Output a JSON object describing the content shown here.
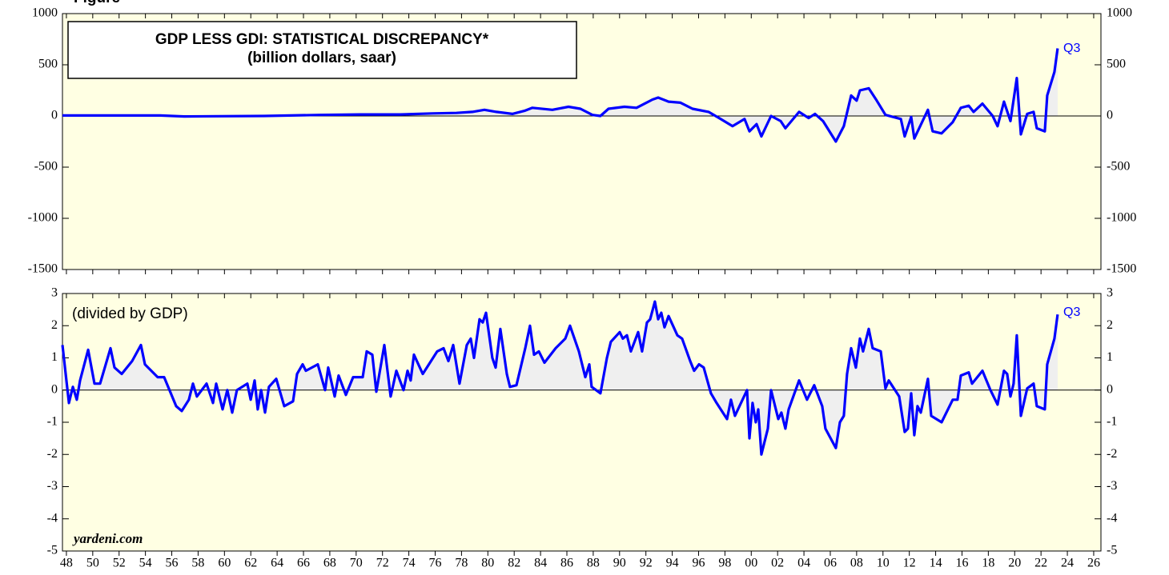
{
  "figure_label": "Figure",
  "chart_data": [
    {
      "type": "line",
      "title": "GDP LESS GDI: STATISTICAL DISCREPANCY*",
      "subtitle": "(billion dollars, saar)",
      "annotation": "Q3",
      "xlim": [
        1947.7,
        2026.55
      ],
      "ylim": [
        -1500,
        1000
      ],
      "yticks": [
        -1500,
        -1000,
        -500,
        0,
        500,
        1000
      ],
      "series": [
        {
          "name": "GDP less GDI",
          "color": "#0000ff",
          "x": [
            1947.7,
            1955.12,
            1956.94,
            1963.02,
            1967.27,
            1970.31,
            1973.35,
            1975.79,
            1977.61,
            1978.82,
            1979.74,
            1980.65,
            1981.86,
            1982.78,
            1983.38,
            1984.9,
            1986.12,
            1987.03,
            1987.94,
            1988.55,
            1989.16,
            1990.37,
            1991.29,
            1992.5,
            1992.93,
            1993.72,
            1994.63,
            1995.54,
            1996.76,
            1997.67,
            1998.58,
            1999.49,
            1999.86,
            2000.4,
            2000.77,
            2001.5,
            2002.23,
            2002.59,
            2003.63,
            2004.36,
            2004.84,
            2005.45,
            2006.42,
            2007.03,
            2007.58,
            2008.0,
            2008.25,
            2008.92,
            2009.53,
            2010.19,
            2011.36,
            2011.65,
            2012.14,
            2012.38,
            2013.41,
            2013.77,
            2014.45,
            2015.3,
            2015.91,
            2016.51,
            2016.88,
            2017.55,
            2018.33,
            2018.7,
            2019.19,
            2019.68,
            2020.16,
            2020.47,
            2020.95,
            2021.44,
            2021.68,
            2022.29,
            2022.47,
            2023.02,
            2023.26
          ],
          "values": [
            5,
            5,
            -5,
            0,
            10,
            15,
            15,
            25,
            30,
            40,
            60,
            40,
            20,
            50,
            80,
            60,
            90,
            70,
            10,
            0,
            70,
            90,
            80,
            160,
            180,
            140,
            130,
            70,
            40,
            -30,
            -100,
            -30,
            -150,
            -80,
            -200,
            0,
            -50,
            -120,
            40,
            -20,
            20,
            -50,
            -250,
            -100,
            200,
            150,
            250,
            270,
            150,
            10,
            -30,
            -200,
            -10,
            -220,
            60,
            -150,
            -170,
            -60,
            80,
            100,
            40,
            120,
            0,
            -100,
            140,
            -50,
            370,
            -180,
            20,
            40,
            -120,
            -150,
            200,
            430,
            660
          ]
        }
      ]
    },
    {
      "type": "line",
      "annotation": "(divided by GDP)",
      "label": "Q3",
      "source": "yardeni.com",
      "xlim": [
        1947.7,
        2026.55
      ],
      "ylim": [
        -5,
        3
      ],
      "yticks": [
        -5,
        -4,
        -3,
        -2,
        -1,
        0,
        1,
        2,
        3
      ],
      "xticks": [
        {
          "value": 1948,
          "label": "48"
        },
        {
          "value": 1950,
          "label": "50"
        },
        {
          "value": 1952,
          "label": "52"
        },
        {
          "value": 1954,
          "label": "54"
        },
        {
          "value": 1956,
          "label": "56"
        },
        {
          "value": 1958,
          "label": "58"
        },
        {
          "value": 1960,
          "label": "60"
        },
        {
          "value": 1962,
          "label": "62"
        },
        {
          "value": 1964,
          "label": "64"
        },
        {
          "value": 1966,
          "label": "66"
        },
        {
          "value": 1968,
          "label": "68"
        },
        {
          "value": 1970,
          "label": "70"
        },
        {
          "value": 1972,
          "label": "72"
        },
        {
          "value": 1974,
          "label": "74"
        },
        {
          "value": 1976,
          "label": "76"
        },
        {
          "value": 1978,
          "label": "78"
        },
        {
          "value": 1980,
          "label": "80"
        },
        {
          "value": 1982,
          "label": "82"
        },
        {
          "value": 1984,
          "label": "84"
        },
        {
          "value": 1986,
          "label": "86"
        },
        {
          "value": 1988,
          "label": "88"
        },
        {
          "value": 1990,
          "label": "90"
        },
        {
          "value": 1992,
          "label": "92"
        },
        {
          "value": 1994,
          "label": "94"
        },
        {
          "value": 1996,
          "label": "96"
        },
        {
          "value": 1998,
          "label": "98"
        },
        {
          "value": 2000,
          "label": "00"
        },
        {
          "value": 2002,
          "label": "02"
        },
        {
          "value": 2004,
          "label": "04"
        },
        {
          "value": 2006,
          "label": "06"
        },
        {
          "value": 2008,
          "label": "08"
        },
        {
          "value": 2010,
          "label": "10"
        },
        {
          "value": 2012,
          "label": "12"
        },
        {
          "value": 2014,
          "label": "14"
        },
        {
          "value": 2016,
          "label": "16"
        },
        {
          "value": 2018,
          "label": "18"
        },
        {
          "value": 2020,
          "label": "20"
        },
        {
          "value": 2022,
          "label": "22"
        },
        {
          "value": 2024,
          "label": "24"
        },
        {
          "value": 2026,
          "label": "26"
        }
      ],
      "series": [
        {
          "name": "divided by GDP",
          "color": "#0000ff",
          "x": [
            1947.7,
            1948.19,
            1948.49,
            1948.79,
            1949.04,
            1949.65,
            1950.13,
            1950.56,
            1951.35,
            1951.65,
            1952.2,
            1952.99,
            1953.66,
            1953.96,
            1954.93,
            1955.42,
            1956.33,
            1956.76,
            1957.3,
            1957.61,
            1957.91,
            1958.64,
            1959.13,
            1959.37,
            1959.86,
            1960.22,
            1960.59,
            1960.95,
            1961.74,
            1961.99,
            1962.29,
            1962.53,
            1962.78,
            1963.08,
            1963.38,
            1963.93,
            1964.54,
            1965.21,
            1965.51,
            1965.94,
            1966.18,
            1967.09,
            1967.64,
            1967.88,
            1968.37,
            1968.67,
            1969.22,
            1969.77,
            1970.5,
            1970.8,
            1971.23,
            1971.53,
            1972.14,
            1972.62,
            1973.05,
            1973.6,
            1973.9,
            1974.14,
            1974.39,
            1975.06,
            1976.15,
            1976.64,
            1977.0,
            1977.37,
            1977.85,
            1978.4,
            1978.7,
            1978.95,
            1979.37,
            1979.61,
            1979.86,
            1980.34,
            1980.59,
            1980.95,
            1981.44,
            1981.68,
            1982.17,
            1982.84,
            1983.2,
            1983.51,
            1983.87,
            1984.3,
            1985.15,
            1985.88,
            1986.24,
            1986.91,
            1987.4,
            1987.7,
            1987.88,
            1988.55,
            1989.04,
            1989.34,
            1990.01,
            1990.25,
            1990.56,
            1990.86,
            1991.41,
            1991.71,
            1992.08,
            1992.32,
            1992.68,
            1992.93,
            1993.17,
            1993.41,
            1993.72,
            1994.39,
            1994.75,
            1995.36,
            1995.66,
            1996.03,
            1996.39,
            1996.94,
            1997.37,
            1998.16,
            1998.46,
            1998.76,
            1999.68,
            1999.86,
            2000.1,
            2000.34,
            2000.53,
            2000.77,
            2001.26,
            2001.5,
            2002.05,
            2002.29,
            2002.59,
            2002.84,
            2003.63,
            2004.23,
            2004.78,
            2005.39,
            2005.63,
            2006.42,
            2006.73,
            2007.03,
            2007.27,
            2007.58,
            2007.94,
            2008.25,
            2008.49,
            2008.92,
            2009.22,
            2009.83,
            2010.19,
            2010.44,
            2011.23,
            2011.65,
            2011.89,
            2012.14,
            2012.38,
            2012.62,
            2012.87,
            2013.41,
            2013.66,
            2014.45,
            2015.3,
            2015.66,
            2015.91,
            2016.51,
            2016.76,
            2017.55,
            2018.16,
            2018.7,
            2019.19,
            2019.43,
            2019.68,
            2019.92,
            2020.16,
            2020.47,
            2020.95,
            2021.44,
            2021.68,
            2022.29,
            2022.47,
            2023.02,
            2023.26
          ],
          "values": [
            1.4,
            -0.4,
            0.1,
            -0.3,
            0.3,
            1.25,
            0.2,
            0.2,
            1.3,
            0.7,
            0.5,
            0.9,
            1.4,
            0.8,
            0.4,
            0.4,
            -0.5,
            -0.65,
            -0.3,
            0.2,
            -0.2,
            0.2,
            -0.4,
            0.2,
            -0.6,
            0.0,
            -0.7,
            0.0,
            0.2,
            -0.3,
            0.3,
            -0.6,
            0.0,
            -0.7,
            0.1,
            0.35,
            -0.5,
            -0.35,
            0.5,
            0.8,
            0.6,
            0.8,
            0.0,
            0.7,
            -0.2,
            0.45,
            -0.15,
            0.4,
            0.4,
            1.2,
            1.1,
            -0.05,
            1.4,
            -0.2,
            0.6,
            0.0,
            0.6,
            0.3,
            1.1,
            0.5,
            1.2,
            1.3,
            0.9,
            1.4,
            0.2,
            1.4,
            1.6,
            1.0,
            2.2,
            2.1,
            2.4,
            1.0,
            0.7,
            1.9,
            0.5,
            0.1,
            0.15,
            1.3,
            2.0,
            1.1,
            1.2,
            0.85,
            1.3,
            1.6,
            2.0,
            1.2,
            0.4,
            0.8,
            0.1,
            -0.1,
            1.0,
            1.5,
            1.8,
            1.6,
            1.7,
            1.2,
            1.8,
            1.2,
            2.1,
            2.2,
            2.75,
            2.2,
            2.4,
            1.95,
            2.3,
            1.7,
            1.6,
            0.9,
            0.6,
            0.8,
            0.7,
            -0.1,
            -0.4,
            -0.9,
            -0.3,
            -0.8,
            0.0,
            -1.5,
            -0.4,
            -1.0,
            -0.6,
            -2.0,
            -1.2,
            0.0,
            -0.9,
            -0.7,
            -1.2,
            -0.6,
            0.3,
            -0.3,
            0.15,
            -0.5,
            -1.2,
            -1.8,
            -1.0,
            -0.8,
            0.5,
            1.3,
            0.7,
            1.6,
            1.2,
            1.9,
            1.3,
            1.2,
            0.05,
            0.3,
            -0.2,
            -1.3,
            -1.2,
            -0.1,
            -1.4,
            -0.5,
            -0.7,
            0.35,
            -0.8,
            -1.0,
            -0.3,
            -0.3,
            0.45,
            0.55,
            0.2,
            0.6,
            0.0,
            -0.45,
            0.6,
            0.5,
            -0.2,
            0.2,
            1.7,
            -0.8,
            0.05,
            0.2,
            -0.5,
            -0.6,
            0.8,
            1.6,
            2.35
          ]
        }
      ]
    }
  ]
}
